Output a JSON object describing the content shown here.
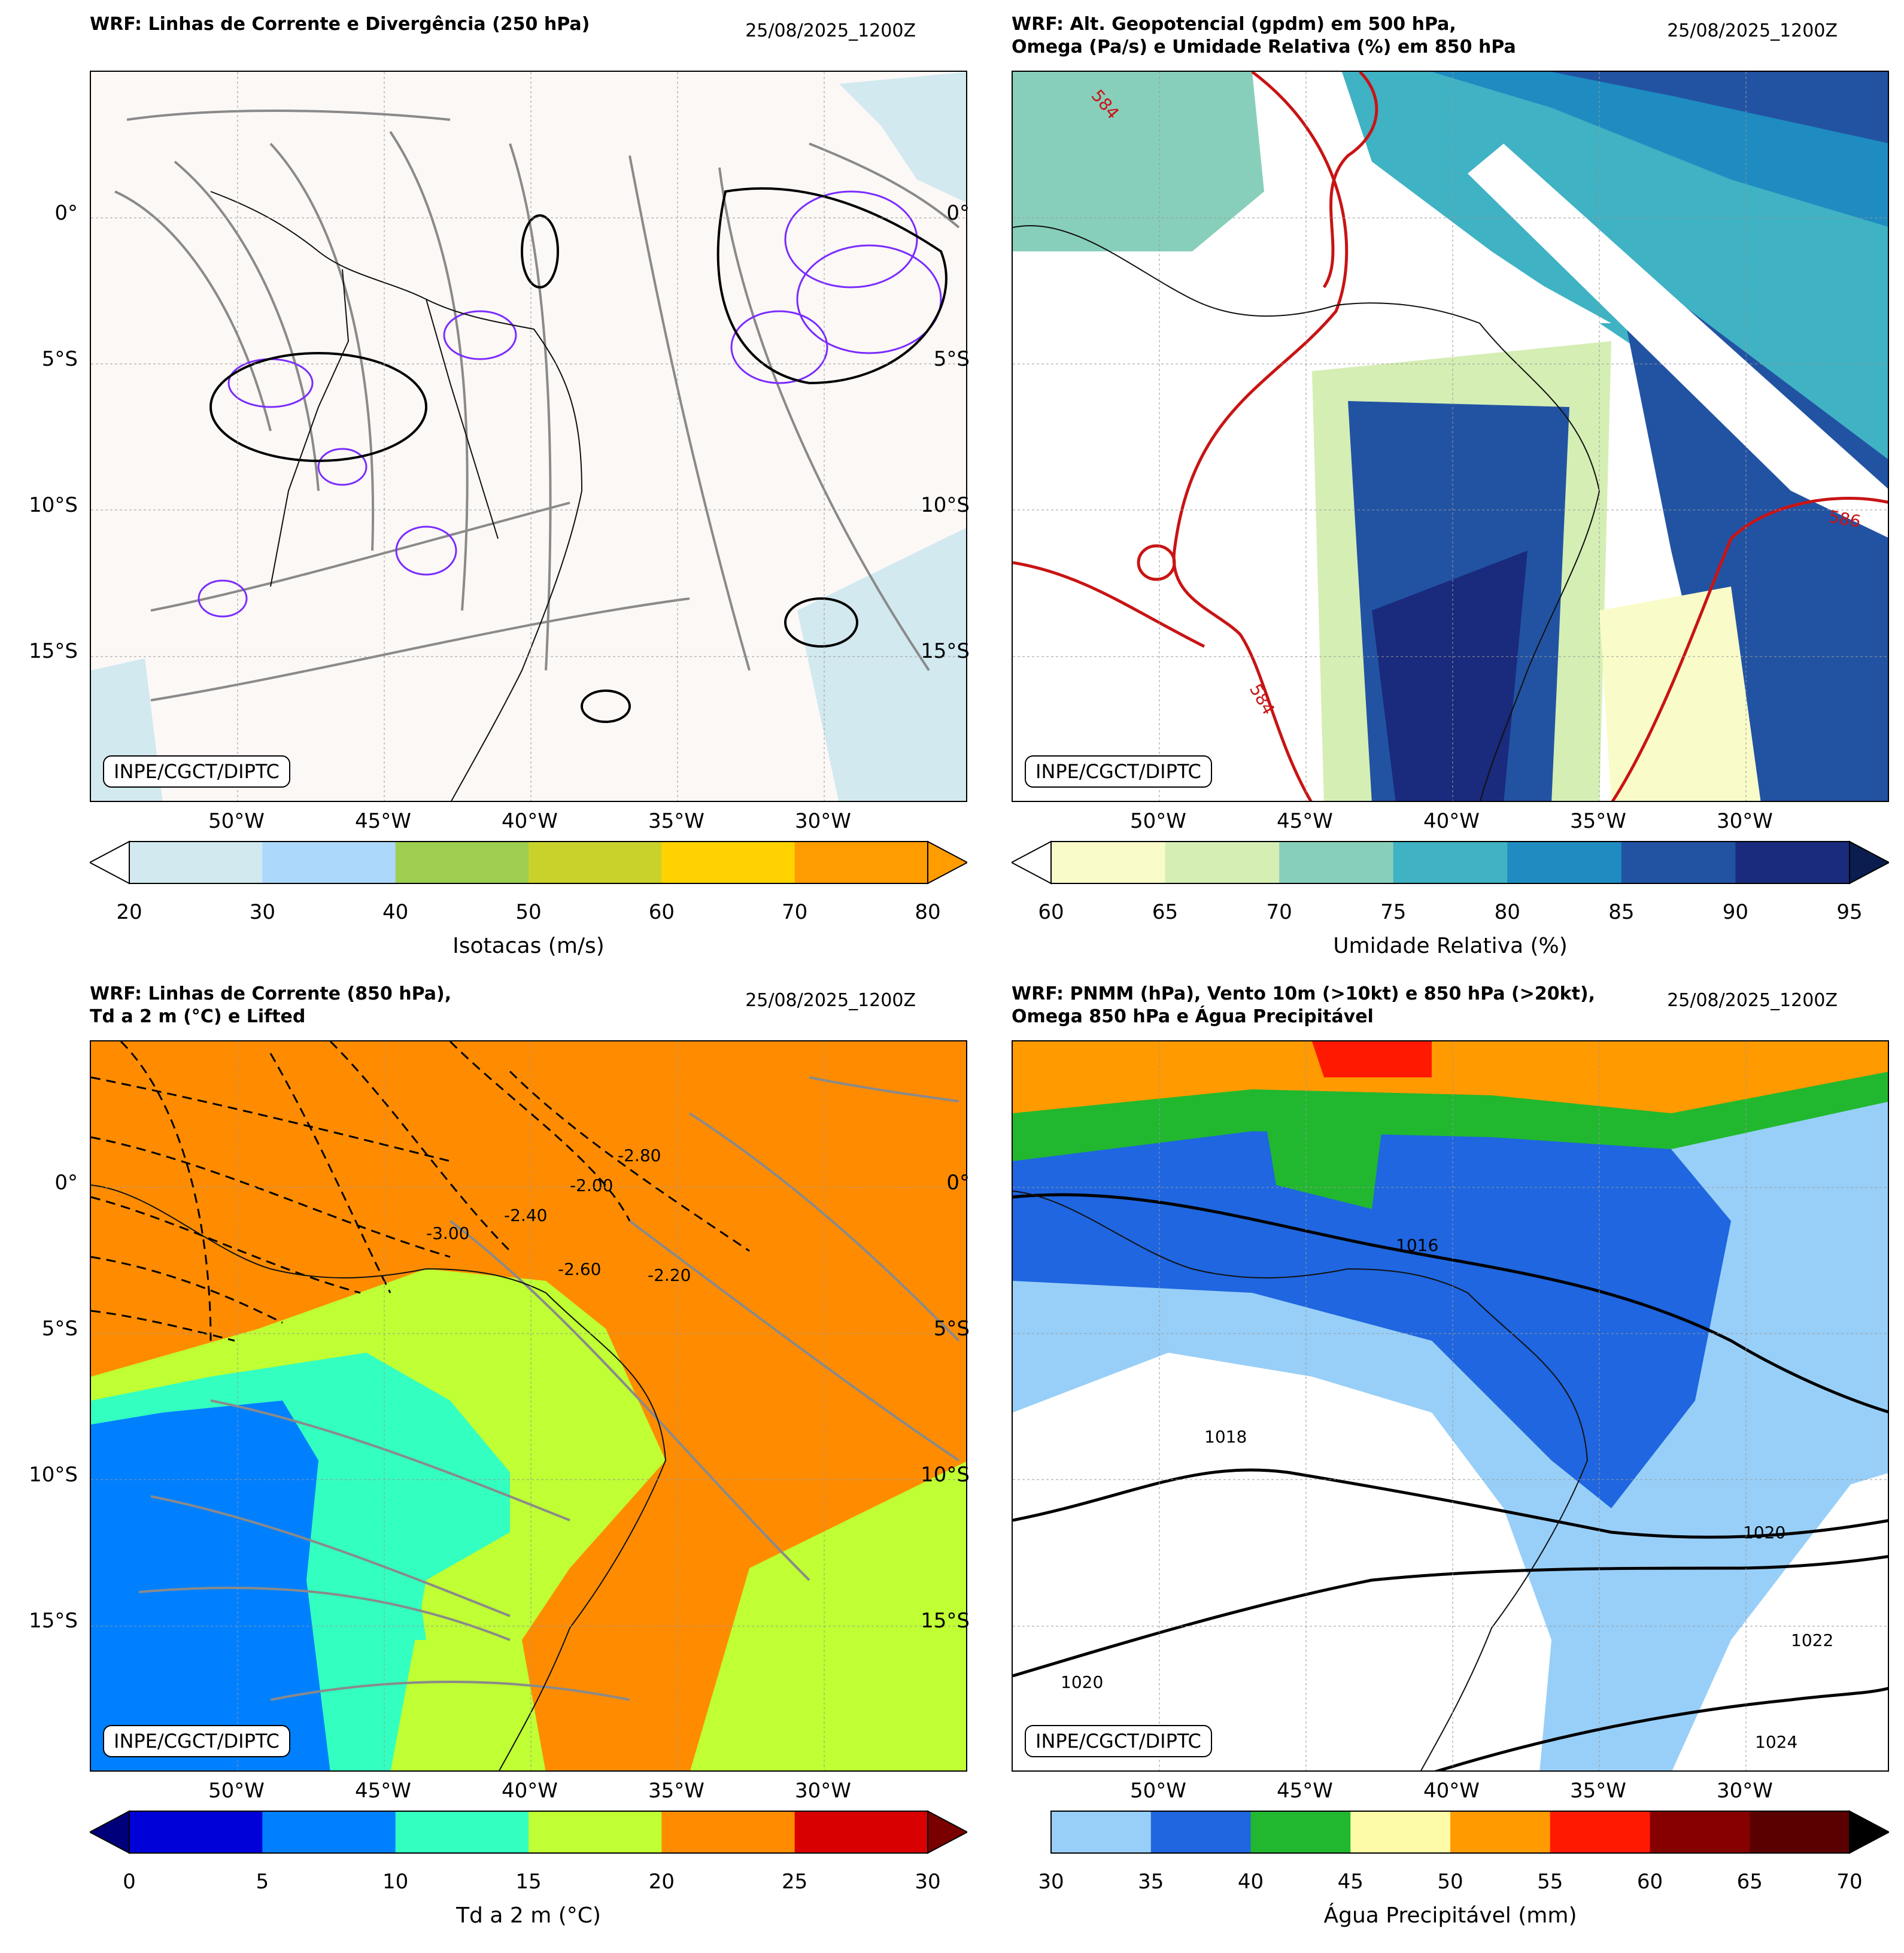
{
  "figure": {
    "credit": "INPE/CGCT/DIPTC",
    "date": "25/08/2025_1200Z",
    "lat_ticks": [
      "0°",
      "5°S",
      "10°S",
      "15°S"
    ],
    "lon_ticks": [
      "50°W",
      "45°W",
      "40°W",
      "35°W",
      "30°W"
    ]
  },
  "chart_data": [
    {
      "type": "contour_map",
      "title": "WRF: Linhas de Corrente e Divergência (250 hPa)",
      "date": "25/08/2025_1200Z",
      "colorbar": {
        "label": "Isotacas (m/s)",
        "ticks": [
          "20",
          "30",
          "40",
          "50",
          "60",
          "70",
          "80"
        ],
        "colors": [
          "#d1e9ef",
          "#acd8fc",
          "#9dce50",
          "#c9d22b",
          "#ffd200",
          "#ff9c00"
        ],
        "extend": "both",
        "extend_colors": [
          "#ffffff",
          "#ff9c00"
        ]
      }
    },
    {
      "type": "contour_map",
      "title": "WRF: Alt. Geopotencial (gpdm) em 500 hPa,\nOmega (Pa/s) e Umidade Relativa (%) em 850 hPa",
      "date": "25/08/2025_1200Z",
      "contour_labels": [
        "584",
        "584",
        "586"
      ],
      "colorbar": {
        "label": "Umidade Relativa (%)",
        "ticks": [
          "60",
          "65",
          "70",
          "75",
          "80",
          "85",
          "90",
          "95"
        ],
        "colors": [
          "#f9fcc8",
          "#d5eeb4",
          "#88cfbb",
          "#3fb2c4",
          "#1e8cc0",
          "#2253a3",
          "#1a2a7c"
        ],
        "extend": "both",
        "extend_colors": [
          "#ffffff",
          "#0b1d4f"
        ]
      }
    },
    {
      "type": "contour_map",
      "title": "WRF: Linhas de Corrente (850 hPa),\nTd a 2 m (°C) e Lifted",
      "date": "25/08/2025_1200Z",
      "contour_labels": [
        "-2.80",
        "-2.60",
        "-2.40",
        "-2.20",
        "-2.00",
        "-3.00"
      ],
      "colorbar": {
        "label": "Td a 2 m (°C)",
        "ticks": [
          "0",
          "5",
          "10",
          "15",
          "20",
          "25",
          "30"
        ],
        "colors": [
          "#0000d8",
          "#0080ff",
          "#33ffc0",
          "#bfff33",
          "#ff8c00",
          "#d80000"
        ],
        "extend": "both",
        "extend_colors": [
          "#00007a",
          "#7a0000"
        ]
      }
    },
    {
      "type": "contour_map",
      "title": "WRF: PNMM (hPa), Vento 10m (>10kt) e 850 hPa (>20kt),\nOmega 850 hPa e Água Precipitável",
      "date": "25/08/2025_1200Z",
      "contour_labels": [
        "1018",
        "1020",
        "1020",
        "1022",
        "1024",
        "1016"
      ],
      "colorbar": {
        "label": "Água Precipitável (mm)",
        "ticks": [
          "30",
          "35",
          "40",
          "45",
          "50",
          "55",
          "60",
          "65",
          "70"
        ],
        "colors": [
          "#98cff8",
          "#1f66e0",
          "#21b82f",
          "#fdfaa8",
          "#ff9a00",
          "#ff1900",
          "#870000",
          "#5a0000"
        ],
        "extend": "max",
        "extend_colors": [
          "#000000"
        ]
      }
    }
  ]
}
